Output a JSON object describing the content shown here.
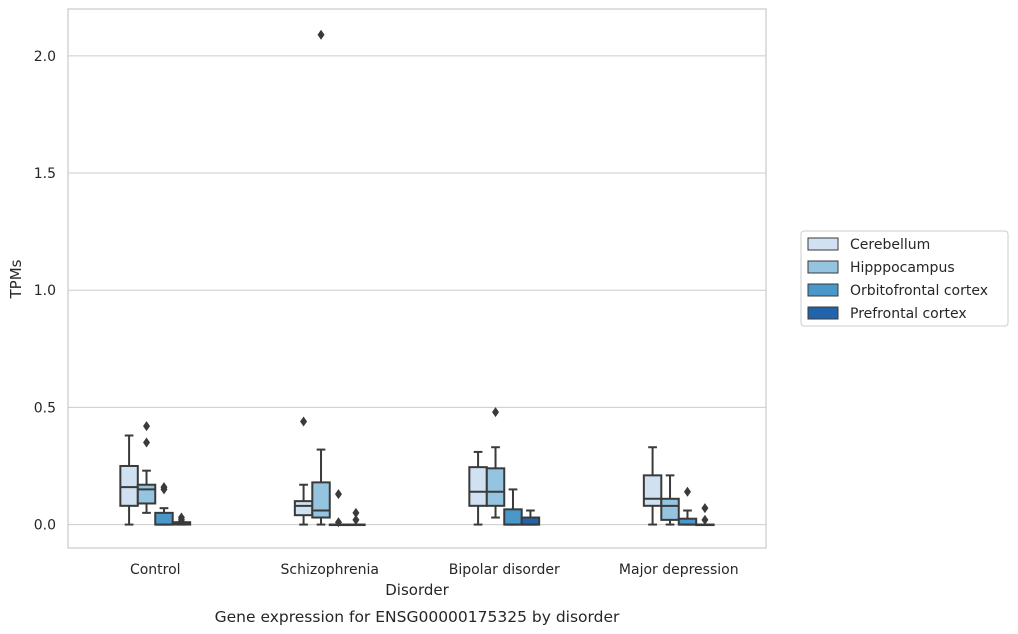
{
  "chart_data": {
    "type": "box",
    "caption": "Gene expression for ENSG00000175325 by disorder",
    "xlabel": "Disorder",
    "ylabel": "TPMs",
    "ylim": [
      -0.1,
      2.2
    ],
    "yticks": [
      "0.0",
      "0.5",
      "1.0",
      "1.5",
      "2.0"
    ],
    "grid": "horizontal",
    "legend_position": "right",
    "categories": [
      "Control",
      "Schizophrenia",
      "Bipolar disorder",
      "Major depression"
    ],
    "series": [
      {
        "name": "Cerebellum",
        "color": "#d0e1f2",
        "boxes": [
          {
            "whisker_low": 0.0,
            "q1": 0.08,
            "median": 0.16,
            "q3": 0.25,
            "whisker_high": 0.38,
            "outliers": []
          },
          {
            "whisker_low": 0.0,
            "q1": 0.04,
            "median": 0.08,
            "q3": 0.1,
            "whisker_high": 0.17,
            "outliers": [
              0.44
            ]
          },
          {
            "whisker_low": 0.0,
            "q1": 0.08,
            "median": 0.14,
            "q3": 0.245,
            "whisker_high": 0.31,
            "outliers": []
          },
          {
            "whisker_low": 0.0,
            "q1": 0.08,
            "median": 0.11,
            "q3": 0.21,
            "whisker_high": 0.33,
            "outliers": []
          }
        ]
      },
      {
        "name": "Hipppocampus",
        "color": "#94c4df",
        "boxes": [
          {
            "whisker_low": 0.05,
            "q1": 0.09,
            "median": 0.15,
            "q3": 0.17,
            "whisker_high": 0.23,
            "outliers": [
              0.35,
              0.42
            ]
          },
          {
            "whisker_low": 0.0,
            "q1": 0.03,
            "median": 0.06,
            "q3": 0.18,
            "whisker_high": 0.32,
            "outliers": [
              2.09
            ]
          },
          {
            "whisker_low": 0.03,
            "q1": 0.08,
            "median": 0.14,
            "q3": 0.24,
            "whisker_high": 0.33,
            "outliers": [
              0.48
            ]
          },
          {
            "whisker_low": 0.0,
            "q1": 0.02,
            "median": 0.08,
            "q3": 0.11,
            "whisker_high": 0.21,
            "outliers": []
          }
        ]
      },
      {
        "name": "Orbitofrontal cortex",
        "color": "#4a98c9",
        "boxes": [
          {
            "whisker_low": 0.0,
            "q1": 0.0,
            "median": 0.0,
            "q3": 0.05,
            "whisker_high": 0.07,
            "outliers": [
              0.15,
              0.16
            ]
          },
          {
            "whisker_low": 0.0,
            "q1": 0.0,
            "median": 0.0,
            "q3": 0.0,
            "whisker_high": 0.0,
            "outliers": [
              0.01,
              0.13
            ]
          },
          {
            "whisker_low": 0.0,
            "q1": 0.0,
            "median": 0.0,
            "q3": 0.065,
            "whisker_high": 0.15,
            "outliers": []
          },
          {
            "whisker_low": 0.0,
            "q1": 0.0,
            "median": 0.0,
            "q3": 0.025,
            "whisker_high": 0.06,
            "outliers": [
              0.14
            ]
          }
        ]
      },
      {
        "name": "Prefrontal cortex",
        "color": "#2264ab",
        "boxes": [
          {
            "whisker_low": 0.0,
            "q1": 0.0,
            "median": 0.005,
            "q3": 0.01,
            "whisker_high": 0.01,
            "outliers": [
              0.02,
              0.03
            ]
          },
          {
            "whisker_low": 0.0,
            "q1": 0.0,
            "median": 0.0,
            "q3": 0.0,
            "whisker_high": 0.0,
            "outliers": [
              0.02,
              0.05
            ]
          },
          {
            "whisker_low": 0.0,
            "q1": 0.0,
            "median": 0.0,
            "q3": 0.03,
            "whisker_high": 0.06,
            "outliers": []
          },
          {
            "whisker_low": 0.0,
            "q1": 0.0,
            "median": 0.0,
            "q3": 0.0,
            "whisker_high": 0.0,
            "outliers": [
              0.02,
              0.07
            ]
          }
        ]
      }
    ]
  }
}
